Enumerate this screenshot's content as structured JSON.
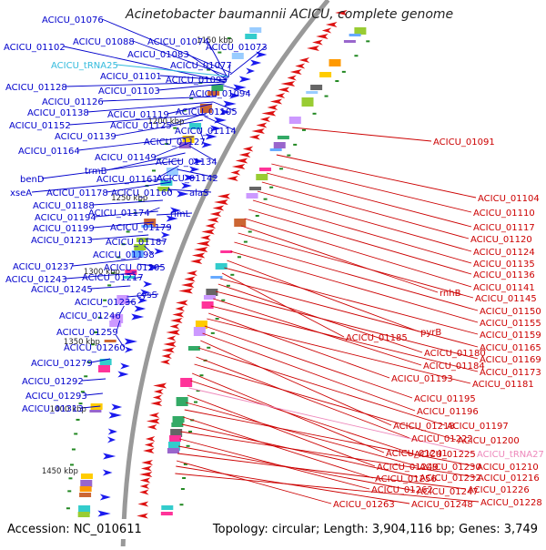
{
  "title": "Acinetobacter baumannii ACICU, complete genome",
  "footer": {
    "accession": "Accession: NC_010611",
    "summary": "Topology: circular; Length: 3,904,116 bp; Genes: 3,749"
  },
  "colors": {
    "left_gene": "#0000cc",
    "trna": "#33bbdd",
    "right_gene": "#cc0000",
    "right_trna": "#ee88bb",
    "backbone": "#999999",
    "forward_arrow": "#1a1aee",
    "reverse_arrow": "#dd1111",
    "tick": "#228822"
  },
  "scale_labels": [
    "1150 kbp",
    "1200 kbp",
    "1250 kbp",
    "1300 kbp",
    "1350 kbp",
    "1400 kbp",
    "1450 kbp"
  ],
  "left_labels": [
    {
      "text": "ACICU_01076",
      "kind": "gene"
    },
    {
      "text": "ACICU_01088",
      "kind": "gene"
    },
    {
      "text": "ACICU_01074",
      "kind": "gene"
    },
    {
      "text": "ACICU_01102",
      "kind": "gene"
    },
    {
      "text": "ACICU_01083",
      "kind": "gene"
    },
    {
      "text": "ACICU_01073",
      "kind": "gene"
    },
    {
      "text": "ACICU_tRNA25",
      "kind": "trna"
    },
    {
      "text": "ACICU_01077",
      "kind": "gene"
    },
    {
      "text": "ACICU_01101",
      "kind": "gene"
    },
    {
      "text": "ACICU_01093",
      "kind": "gene"
    },
    {
      "text": "ACICU_01128",
      "kind": "gene"
    },
    {
      "text": "ACICU_01103",
      "kind": "gene"
    },
    {
      "text": "ACICU_01094",
      "kind": "gene"
    },
    {
      "text": "ACICU_01126",
      "kind": "gene"
    },
    {
      "text": "ACICU_01138",
      "kind": "gene"
    },
    {
      "text": "ACICU_01119",
      "kind": "gene"
    },
    {
      "text": "ACICU_01105",
      "kind": "gene"
    },
    {
      "text": "ACICU_01152",
      "kind": "gene"
    },
    {
      "text": "ACICU_01125",
      "kind": "gene"
    },
    {
      "text": "ACICU_01114",
      "kind": "gene"
    },
    {
      "text": "ACICU_01139",
      "kind": "gene"
    },
    {
      "text": "ACICU_01127",
      "kind": "gene"
    },
    {
      "text": "ACICU_01164",
      "kind": "gene"
    },
    {
      "text": "ACICU_01149",
      "kind": "gene"
    },
    {
      "text": "ACICU_01134",
      "kind": "gene"
    },
    {
      "text": "trmB",
      "kind": "gene"
    },
    {
      "text": "benD",
      "kind": "gene"
    },
    {
      "text": "ACICU_01161",
      "kind": "gene"
    },
    {
      "text": "ACICU_01142",
      "kind": "gene"
    },
    {
      "text": "xseA",
      "kind": "gene"
    },
    {
      "text": "ACICU_01178",
      "kind": "gene"
    },
    {
      "text": "ACICU_01160",
      "kind": "gene"
    },
    {
      "text": "alaS",
      "kind": "gene"
    },
    {
      "text": "ACICU_01188",
      "kind": "gene"
    },
    {
      "text": "ACICU_01174",
      "kind": "gene"
    },
    {
      "text": "ACICU_01194",
      "kind": "gene"
    },
    {
      "text": "rlmL",
      "kind": "gene"
    },
    {
      "text": "ACICU_01199",
      "kind": "gene"
    },
    {
      "text": "ACICU_01179",
      "kind": "gene"
    },
    {
      "text": "ACICU_01213",
      "kind": "gene"
    },
    {
      "text": "ACICU_01187",
      "kind": "gene"
    },
    {
      "text": "ACICU_01198",
      "kind": "gene"
    },
    {
      "text": "ACICU_01237",
      "kind": "gene"
    },
    {
      "text": "ACICU_01205",
      "kind": "gene"
    },
    {
      "text": "ACICU_01243",
      "kind": "gene"
    },
    {
      "text": "ACICU_01217",
      "kind": "gene"
    },
    {
      "text": "ACICU_01245",
      "kind": "gene"
    },
    {
      "text": "cysS",
      "kind": "gene"
    },
    {
      "text": "ACICU_01236",
      "kind": "gene"
    },
    {
      "text": "ACICU_01246",
      "kind": "gene"
    },
    {
      "text": "ACICU_01259",
      "kind": "gene"
    },
    {
      "text": "ACICU_01260",
      "kind": "gene"
    },
    {
      "text": "ACICU_01279",
      "kind": "gene"
    },
    {
      "text": "ACICU_01292",
      "kind": "gene"
    },
    {
      "text": "ACICU_01293",
      "kind": "gene"
    },
    {
      "text": "ACICU_01313",
      "kind": "gene"
    }
  ],
  "right_labels": [
    {
      "text": "ACICU_01091",
      "kind": "gene"
    },
    {
      "text": "ACICU_01104",
      "kind": "gene"
    },
    {
      "text": "ACICU_01110",
      "kind": "gene"
    },
    {
      "text": "ACICU_01117",
      "kind": "gene"
    },
    {
      "text": "ACICU_01120",
      "kind": "gene"
    },
    {
      "text": "ACICU_01124",
      "kind": "gene"
    },
    {
      "text": "ACICU_01135",
      "kind": "gene"
    },
    {
      "text": "ACICU_01136",
      "kind": "gene"
    },
    {
      "text": "ACICU_01141",
      "kind": "gene"
    },
    {
      "text": "rnhB",
      "kind": "gene"
    },
    {
      "text": "ACICU_01145",
      "kind": "gene"
    },
    {
      "text": "ACICU_01150",
      "kind": "gene"
    },
    {
      "text": "ACICU_01155",
      "kind": "gene"
    },
    {
      "text": "pyrB",
      "kind": "gene"
    },
    {
      "text": "ACICU_01159",
      "kind": "gene"
    },
    {
      "text": "ACICU_01185",
      "kind": "gene"
    },
    {
      "text": "ACICU_01165",
      "kind": "gene"
    },
    {
      "text": "ACICU_01180",
      "kind": "gene"
    },
    {
      "text": "ACICU_01169",
      "kind": "gene"
    },
    {
      "text": "ACICU_01184",
      "kind": "gene"
    },
    {
      "text": "ACICU_01173",
      "kind": "gene"
    },
    {
      "text": "ACICU_01193",
      "kind": "gene"
    },
    {
      "text": "ACICU_01181",
      "kind": "gene"
    },
    {
      "text": "ACICU_01195",
      "kind": "gene"
    },
    {
      "text": "ACICU_01196",
      "kind": "gene"
    },
    {
      "text": "ACICU_01218",
      "kind": "gene"
    },
    {
      "text": "ACICU_01197",
      "kind": "gene"
    },
    {
      "text": "ACICU_01222",
      "kind": "gene"
    },
    {
      "text": "ACICU_01200",
      "kind": "gene"
    },
    {
      "text": "ACICU_01241",
      "kind": "gene"
    },
    {
      "text": "ACICU_01225",
      "kind": "gene"
    },
    {
      "text": "ACICU_tRNA27",
      "kind": "trna"
    },
    {
      "text": "ACICU_01249",
      "kind": "gene"
    },
    {
      "text": "ACICU_01230",
      "kind": "gene"
    },
    {
      "text": "ACICU_01210",
      "kind": "gene"
    },
    {
      "text": "ACICU_01256",
      "kind": "gene"
    },
    {
      "text": "ACICU_01232",
      "kind": "gene"
    },
    {
      "text": "ACICU_01216",
      "kind": "gene"
    },
    {
      "text": "ACICU_01262",
      "kind": "gene"
    },
    {
      "text": "ACICU_01247",
      "kind": "gene"
    },
    {
      "text": "ACICU_01226",
      "kind": "gene"
    },
    {
      "text": "ACICU_01263",
      "kind": "gene"
    },
    {
      "text": "ACICU_01248",
      "kind": "gene"
    },
    {
      "text": "ACICU_01228",
      "kind": "gene"
    }
  ]
}
